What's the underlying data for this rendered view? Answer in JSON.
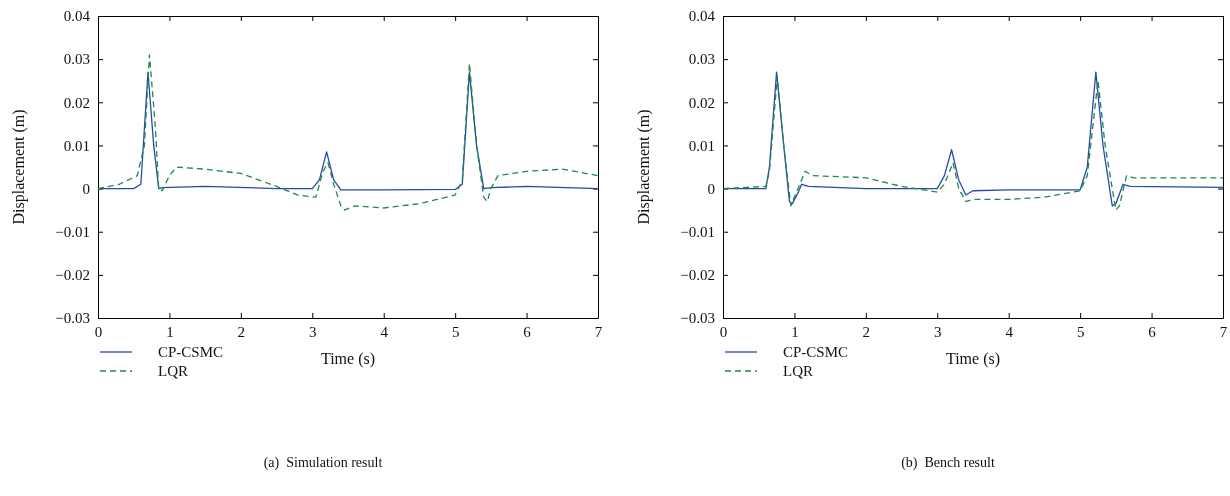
{
  "chart_data": [
    {
      "type": "line",
      "xlabel": "Time (s)",
      "ylabel": "Displacement (m)",
      "annotations": [
        "(a)  Simulation result"
      ],
      "legend": "bottom left",
      "grid": false,
      "xlim": [
        0,
        7
      ],
      "xticks": [
        0,
        1,
        2,
        3,
        4,
        5,
        6,
        7
      ],
      "ylim": [
        -0.03,
        0.04
      ],
      "yticks": [
        {
          "value": -0.03,
          "label": "−0.03"
        },
        {
          "value": -0.02,
          "label": "−0.02"
        },
        {
          "value": -0.01,
          "label": "−0.01"
        },
        0,
        0.01,
        0.02,
        0.03,
        0.04
      ],
      "series": [
        {
          "name": "CP-CSMC",
          "color": "#2a48a8",
          "line_style": "solid",
          "x": [
            0,
            0.5,
            0.6,
            0.7,
            0.78,
            0.85,
            0.9,
            1.5,
            2.5,
            3.0,
            3.1,
            3.2,
            3.3,
            3.4,
            4,
            5.0,
            5.1,
            5.2,
            5.3,
            5.4,
            5.5,
            6,
            7
          ],
          "values": [
            0,
            0,
            0.001,
            0.027,
            0.01,
            0,
            0.0002,
            0.0005,
            0,
            0,
            0.002,
            0.0085,
            0.002,
            -0.0003,
            -0.0003,
            -0.0002,
            0.001,
            0.027,
            0.01,
            0,
            0.0002,
            0.0005,
            0
          ]
        },
        {
          "name": "LQR",
          "color": "#1e8a45",
          "line_style": "dashed",
          "x": [
            0,
            0.3,
            0.55,
            0.65,
            0.72,
            0.8,
            0.85,
            0.9,
            1.0,
            1.1,
            1.5,
            2,
            2.5,
            2.8,
            3.05,
            3.15,
            3.22,
            3.3,
            3.4,
            3.45,
            3.6,
            4,
            4.5,
            5,
            5.1,
            5.2,
            5.3,
            5.4,
            5.45,
            5.5,
            5.6,
            6,
            6.5,
            7
          ],
          "values": [
            0,
            0.001,
            0.003,
            0.01,
            0.031,
            0.015,
            0,
            -0.0005,
            0.003,
            0.005,
            0.0045,
            0.0035,
            0.0005,
            -0.0015,
            -0.002,
            0.004,
            0.006,
            0.001,
            -0.004,
            -0.005,
            -0.004,
            -0.0045,
            -0.0035,
            -0.0015,
            0.002,
            0.029,
            0.01,
            -0.002,
            -0.003,
            0,
            0.003,
            0.004,
            0.0045,
            0.003
          ]
        }
      ]
    },
    {
      "type": "line",
      "xlabel": "Time (s)",
      "ylabel": "Displacement (m)",
      "annotations": [
        "(b)  Bench result"
      ],
      "legend": "bottom left",
      "grid": false,
      "xlim": [
        0,
        7
      ],
      "xticks": [
        0,
        1,
        2,
        3,
        4,
        5,
        6,
        7
      ],
      "ylim": [
        -0.03,
        0.04
      ],
      "yticks": [
        {
          "value": -0.03,
          "label": "−0.03"
        },
        {
          "value": -0.02,
          "label": "−0.02"
        },
        {
          "value": -0.01,
          "label": "−0.01"
        },
        0,
        0.01,
        0.02,
        0.03,
        0.04
      ],
      "series": [
        {
          "name": "CP-CSMC",
          "color": "#2a48a8",
          "line_style": "solid",
          "x": [
            0,
            0.6,
            0.65,
            0.75,
            0.85,
            0.93,
            0.97,
            1.05,
            1.1,
            1.2,
            2,
            3,
            3.1,
            3.2,
            3.3,
            3.4,
            3.5,
            4,
            5,
            5.1,
            5.22,
            5.32,
            5.45,
            5.5,
            5.6,
            5.7,
            7
          ],
          "values": [
            0,
            0,
            0.005,
            0.027,
            0.01,
            -0.003,
            -0.0035,
            -0.001,
            0.001,
            0.0005,
            0,
            0,
            0.003,
            0.009,
            0.002,
            -0.0015,
            -0.0005,
            -0.0003,
            -0.0003,
            0.005,
            0.027,
            0.01,
            -0.004,
            -0.0035,
            0.001,
            0.0005,
            0.0003
          ]
        },
        {
          "name": "LQR",
          "color": "#1e8a45",
          "line_style": "dashed",
          "x": [
            0,
            0.6,
            0.65,
            0.76,
            0.85,
            0.95,
            1.05,
            1.15,
            1.25,
            2,
            2.5,
            3.0,
            3.1,
            3.22,
            3.3,
            3.4,
            3.5,
            4,
            4.5,
            5.0,
            5.1,
            5.25,
            5.35,
            5.5,
            5.55,
            5.65,
            5.75,
            7
          ],
          "values": [
            0,
            0.0005,
            0.004,
            0.026,
            0.01,
            -0.004,
            0,
            0.004,
            0.003,
            0.0025,
            0.0005,
            -0.0008,
            0.001,
            0.006,
            0,
            -0.003,
            -0.0025,
            -0.0025,
            -0.002,
            -0.0005,
            0.003,
            0.025,
            0.01,
            -0.005,
            -0.004,
            0.003,
            0.0025,
            0.0025
          ]
        }
      ]
    }
  ]
}
